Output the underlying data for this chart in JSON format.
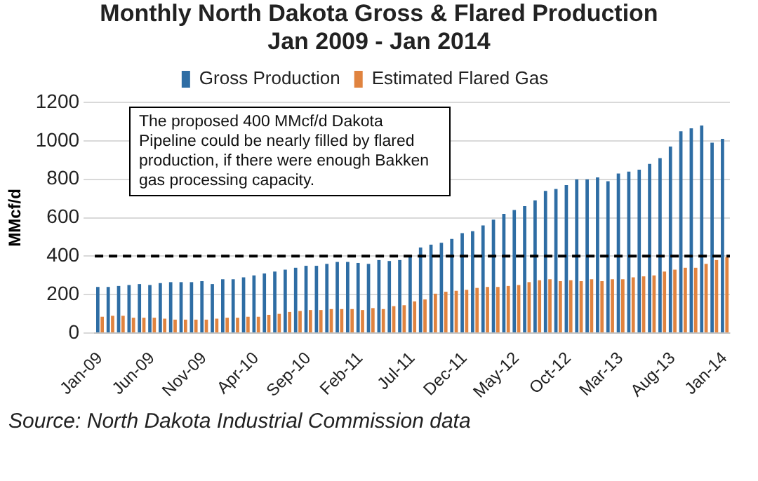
{
  "chart_data": {
    "type": "bar",
    "title": "Monthly North Dakota Gross & Flared Production",
    "subtitle": "Jan 2009 - Jan 2014",
    "ylabel": "MMcf/d",
    "categories": [
      "Jan-09",
      null,
      null,
      null,
      null,
      "Jun-09",
      null,
      null,
      null,
      null,
      "Nov-09",
      null,
      null,
      null,
      null,
      "Apr-10",
      null,
      null,
      null,
      null,
      "Sep-10",
      null,
      null,
      null,
      null,
      "Feb-11",
      null,
      null,
      null,
      null,
      "Jul-11",
      null,
      null,
      null,
      null,
      "Dec-11",
      null,
      null,
      null,
      null,
      "May-12",
      null,
      null,
      null,
      null,
      "Oct-12",
      null,
      null,
      null,
      null,
      "Mar-13",
      null,
      null,
      null,
      null,
      "Aug-13",
      null,
      null,
      null,
      null,
      "Jan-14"
    ],
    "series": [
      {
        "name": "Gross Production",
        "color": "#2e6da4",
        "values": [
          240,
          240,
          245,
          250,
          255,
          250,
          260,
          265,
          265,
          265,
          270,
          255,
          280,
          280,
          290,
          300,
          310,
          320,
          330,
          340,
          350,
          350,
          360,
          370,
          370,
          365,
          360,
          380,
          375,
          380,
          395,
          445,
          460,
          470,
          490,
          520,
          530,
          560,
          590,
          620,
          640,
          660,
          690,
          740,
          750,
          770,
          800,
          800,
          810,
          790,
          830,
          840,
          850,
          880,
          910,
          970,
          1050,
          1065,
          1080,
          990,
          1010
        ]
      },
      {
        "name": "Estimated Flared Gas",
        "color": "#e0833f",
        "values": [
          85,
          90,
          90,
          80,
          80,
          80,
          75,
          70,
          70,
          70,
          70,
          75,
          80,
          80,
          85,
          85,
          95,
          100,
          110,
          115,
          120,
          120,
          125,
          125,
          125,
          120,
          130,
          125,
          140,
          145,
          165,
          175,
          205,
          215,
          220,
          225,
          235,
          240,
          240,
          245,
          250,
          265,
          275,
          280,
          270,
          275,
          270,
          280,
          270,
          280,
          280,
          290,
          295,
          300,
          320,
          330,
          340,
          340,
          360,
          380,
          395
        ]
      }
    ],
    "ylim": [
      0,
      1200
    ],
    "yticks": [
      0,
      200,
      400,
      600,
      800,
      1000,
      1200
    ],
    "grid": "y",
    "legend": "top",
    "ref_lines": [
      {
        "axis": "y",
        "value": 400,
        "color": "#000000",
        "line_style": "dashed"
      }
    ],
    "annotations": [
      "The proposed 400 MMcf/d Dakota Pipeline could be nearly filled by flared production, if there were enough Bakken gas processing capacity.",
      "Source: North Dakota Industrial Commission data"
    ]
  }
}
